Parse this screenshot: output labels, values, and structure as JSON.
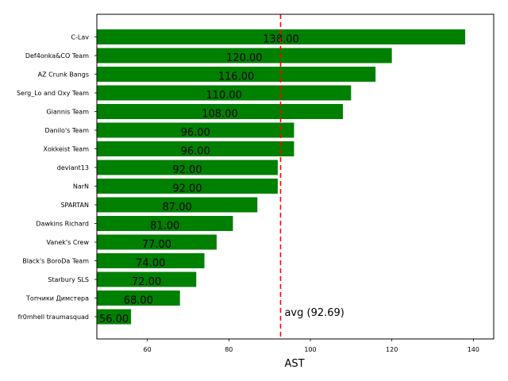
{
  "chart_data": {
    "type": "bar",
    "orientation": "horizontal",
    "categories": [
      "C-Lav",
      "Def4onka&CO Team",
      "AZ Crunk Bangs",
      "Serg_Lo and Oxy Team",
      "Giannis Team",
      "Danilo's Team",
      "Xokkeist Team",
      "deviant13",
      "NarN",
      "SPARTAN",
      "Dawkins Richard",
      "Vanek's Crew",
      "Black's BoroDa Team",
      "Starbury SLS",
      "Топчики Димстера",
      "fr0mhell traumasquad"
    ],
    "values": [
      138,
      120,
      116,
      110,
      108,
      96,
      96,
      92,
      92,
      87,
      81,
      77,
      74,
      72,
      68,
      56
    ],
    "value_labels": [
      "138.00",
      "120.00",
      "116.00",
      "110.00",
      "108.00",
      "96.00",
      "96.00",
      "92.00",
      "92.00",
      "87.00",
      "81.00",
      "77.00",
      "74.00",
      "72.00",
      "68.00",
      "56.00"
    ],
    "bar_color": "#008000",
    "xlabel": "AST",
    "ylabel": "",
    "title": "",
    "xlim": [
      47.6,
      145
    ],
    "xticks": [
      "60",
      "80",
      "100",
      "120",
      "140"
    ],
    "xtick_values": [
      60,
      80,
      100,
      120,
      140
    ],
    "grid": false,
    "average": {
      "value": 92.69,
      "label": "avg (92.69)",
      "color": "#ff0000",
      "style": "dashed"
    }
  }
}
